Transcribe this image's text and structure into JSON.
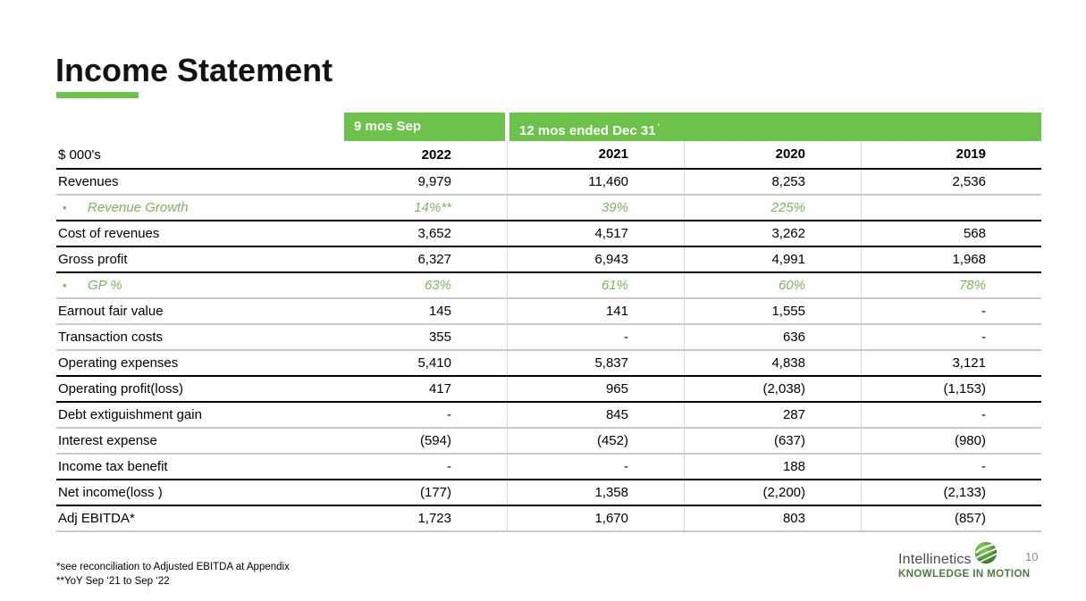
{
  "title": "Income Statement",
  "table": {
    "unit_label": "$ 000's",
    "group_headers": [
      {
        "label": "9 mos Sep",
        "sup": ""
      },
      {
        "label": "12 mos ended Dec 31",
        "sup": "'"
      }
    ],
    "year_headers": [
      "2022",
      "2021",
      "2020",
      "2019"
    ],
    "rows": [
      {
        "label": "Revenues",
        "values": [
          "9,979",
          "11,460",
          "8,253",
          "2,536"
        ],
        "style": "normal",
        "border": "gray"
      },
      {
        "label": "Revenue Growth",
        "values": [
          "14%**",
          "39%",
          "225%",
          ""
        ],
        "style": "green",
        "border": "black"
      },
      {
        "label": "Cost of revenues",
        "values": [
          "3,652",
          "4,517",
          "3,262",
          "568"
        ],
        "style": "normal",
        "border": "black"
      },
      {
        "label": "Gross profit",
        "values": [
          "6,327",
          "6,943",
          "4,991",
          "1,968"
        ],
        "style": "normal",
        "border": "black"
      },
      {
        "label": "GP %",
        "values": [
          "63%",
          "61%",
          "60%",
          "78%"
        ],
        "style": "green",
        "border": "gray"
      },
      {
        "label": "Earnout fair value",
        "values": [
          "145",
          "141",
          "1,555",
          "-"
        ],
        "style": "normal",
        "border": "gray"
      },
      {
        "label": "Transaction costs",
        "values": [
          "355",
          "-",
          "636",
          "-"
        ],
        "style": "normal",
        "border": "gray"
      },
      {
        "label": "Operating expenses",
        "values": [
          "5,410",
          "5,837",
          "4,838",
          "3,121"
        ],
        "style": "normal",
        "border": "black"
      },
      {
        "label": "Operating profit(loss)",
        "values": [
          "417",
          "965",
          "(2,038)",
          "(1,153)"
        ],
        "style": "normal",
        "border": "black"
      },
      {
        "label": "Debt extiguishment gain",
        "values": [
          "-",
          "845",
          "287",
          "-"
        ],
        "style": "normal",
        "border": "gray"
      },
      {
        "label": "Interest expense",
        "values": [
          "(594)",
          "(452)",
          "(637)",
          "(980)"
        ],
        "style": "normal",
        "border": "gray"
      },
      {
        "label": "Income tax benefit",
        "values": [
          "-",
          "-",
          "188",
          "-"
        ],
        "style": "normal",
        "border": "black"
      },
      {
        "label": "Net income(loss )",
        "values": [
          "(177)",
          "1,358",
          "(2,200)",
          "(2,133)"
        ],
        "style": "normal",
        "border": "black"
      },
      {
        "label": "Adj EBITDA*",
        "values": [
          "1,723",
          "1,670",
          "803",
          "(857)"
        ],
        "style": "normal",
        "border": "gray"
      }
    ]
  },
  "footnotes": [
    "*see reconciliation to Adjusted EBITDA at Appendix",
    "**YoY Sep ‘21 to Sep ‘22"
  ],
  "footer": {
    "logo_text": "Intellinetics",
    "tagline": "KNOWLEDGE IN MOTION",
    "page_number": "10"
  },
  "colors": {
    "accent_green": "#6cc24a",
    "green_text": "#7cb45e",
    "logo_green": "#4a7d3f",
    "border_black": "#000000",
    "border_gray": "#c9c9c9",
    "divider_gray": "#d9d9d9"
  }
}
